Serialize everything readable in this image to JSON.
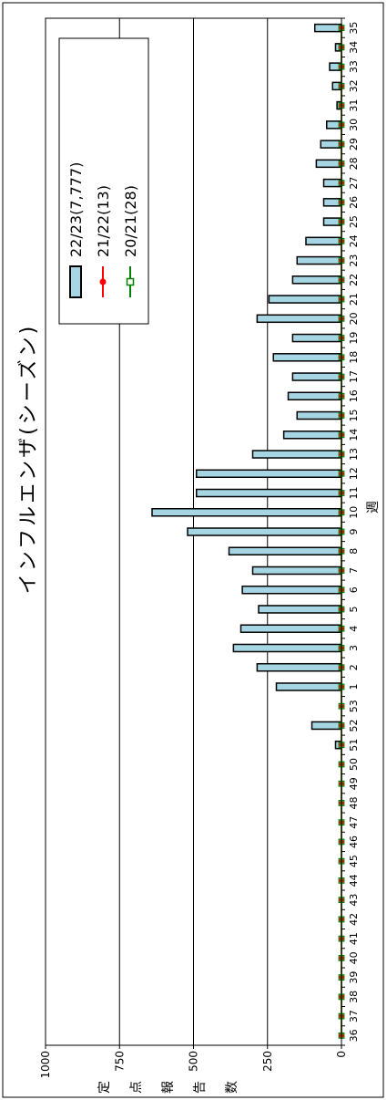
{
  "chart_data": {
    "type": "bar",
    "title": "インフルエンザ(シーズン)",
    "xlabel": "週",
    "ylabel": "定点報告数",
    "categories": [
      "36",
      "37",
      "38",
      "39",
      "40",
      "41",
      "42",
      "43",
      "44",
      "45",
      "46",
      "47",
      "48",
      "49",
      "50",
      "51",
      "52",
      "53",
      "1",
      "2",
      "3",
      "4",
      "5",
      "6",
      "7",
      "8",
      "9",
      "10",
      "11",
      "12",
      "13",
      "14",
      "15",
      "16",
      "17",
      "18",
      "19",
      "20",
      "21",
      "22",
      "23",
      "24",
      "25",
      "26",
      "27",
      "28",
      "29",
      "30",
      "31",
      "32",
      "33",
      "34",
      "35"
    ],
    "ylim": [
      0,
      1000
    ],
    "yticks": [
      0,
      250,
      500,
      750,
      1000
    ],
    "grid": true,
    "legend": "top-right",
    "series": [
      {
        "name": "22/23(7,777)",
        "type": "bar",
        "color": "#a6d5e3",
        "values": [
          0,
          0,
          0,
          0,
          0,
          0,
          0,
          0,
          0,
          0,
          0,
          0,
          0,
          0,
          0,
          20,
          100,
          null,
          220,
          285,
          365,
          340,
          280,
          335,
          300,
          380,
          520,
          640,
          490,
          490,
          300,
          195,
          150,
          180,
          165,
          230,
          165,
          285,
          245,
          165,
          150,
          120,
          60,
          60,
          60,
          85,
          70,
          50,
          15,
          30,
          40,
          20,
          90
        ]
      },
      {
        "name": "21/22(13)",
        "type": "line",
        "marker": "circle",
        "color": "#ff0000",
        "values": [
          0,
          0,
          0,
          0,
          0,
          0,
          0,
          0,
          0,
          0,
          0,
          0,
          0,
          0,
          0,
          0,
          0,
          0,
          0,
          0,
          0,
          0,
          0,
          0,
          0,
          0,
          0,
          0,
          0,
          0,
          0,
          0,
          0,
          0,
          0,
          0,
          0,
          0,
          0,
          0,
          0,
          0,
          0,
          0,
          0,
          0,
          0,
          0,
          0,
          0,
          0,
          0,
          0
        ]
      },
      {
        "name": "20/21(28)",
        "type": "line",
        "marker": "square-open",
        "color": "#008000",
        "values": [
          0,
          0,
          0,
          0,
          0,
          0,
          0,
          0,
          0,
          0,
          0,
          0,
          0,
          0,
          0,
          0,
          0,
          0,
          0,
          0,
          0,
          0,
          0,
          0,
          0,
          0,
          0,
          0,
          0,
          0,
          0,
          0,
          0,
          0,
          0,
          0,
          0,
          0,
          0,
          0,
          0,
          0,
          0,
          0,
          0,
          0,
          0,
          0,
          0,
          0,
          0,
          0,
          0
        ]
      }
    ]
  }
}
